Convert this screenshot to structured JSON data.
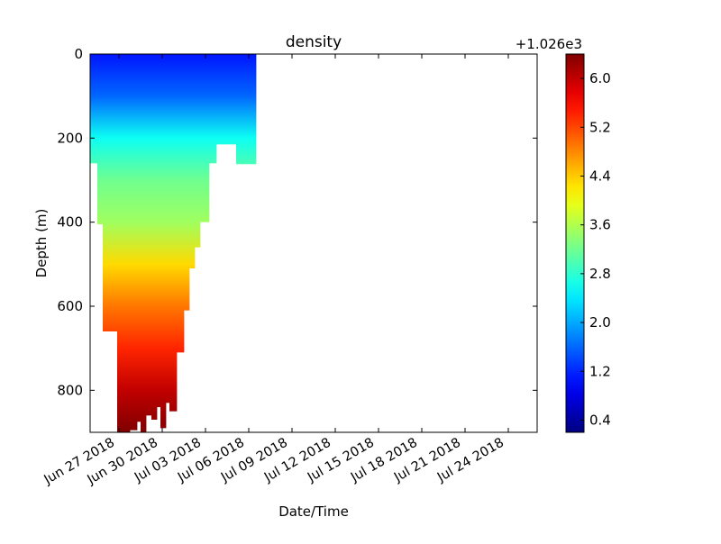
{
  "chart_data": {
    "type": "heatmap",
    "title": "density",
    "xlabel": "Date/Time",
    "ylabel": "Depth (m)",
    "y_inverted": true,
    "ylim": [
      0,
      900
    ],
    "y_ticks": [
      0,
      200,
      400,
      600,
      800
    ],
    "x_range": [
      "2018-06-25",
      "2018-07-26"
    ],
    "x_ticks": [
      "Jun 27 2018",
      "Jun 30 2018",
      "Jul 03 2018",
      "Jul 06 2018",
      "Jul 09 2018",
      "Jul 12 2018",
      "Jul 15 2018",
      "Jul 18 2018",
      "Jul 21 2018",
      "Jul 24 2018"
    ],
    "x_tick_dates": [
      "2018-06-27",
      "2018-06-30",
      "2018-07-03",
      "2018-07-06",
      "2018-07-09",
      "2018-07-12",
      "2018-07-15",
      "2018-07-18",
      "2018-07-21",
      "2018-07-24"
    ],
    "colormap": "jet",
    "colorbar": {
      "offset_label": "+1.026e3",
      "range": [
        0.2,
        6.4
      ],
      "ticks": [
        "0.4",
        "1.2",
        "2.0",
        "2.8",
        "3.6",
        "4.4",
        "5.2",
        "6.0"
      ],
      "tick_values": [
        0.4,
        1.2,
        2.0,
        2.8,
        3.6,
        4.4,
        5.2,
        6.0
      ]
    },
    "density_anomaly_by_depth": {
      "depth": [
        0,
        100,
        200,
        300,
        400,
        500,
        600,
        700,
        800,
        900
      ],
      "value": [
        1.1,
        1.6,
        2.6,
        3.2,
        3.5,
        4.3,
        4.9,
        5.4,
        6.0,
        6.4
      ]
    },
    "profiles_max_depth": [
      {
        "start": "2018-06-25",
        "end": "2018-06-25T12:00",
        "max_depth": 260
      },
      {
        "start": "2018-06-25T12:00",
        "end": "2018-06-25T21:00",
        "max_depth": 405
      },
      {
        "start": "2018-06-25T21:00",
        "end": "2018-06-26T21:00",
        "max_depth": 660
      },
      {
        "start": "2018-06-26T21:00",
        "end": "2018-06-27T18:00",
        "max_depth": 900
      },
      {
        "start": "2018-06-27T18:00",
        "end": "2018-06-28T06:00",
        "max_depth": 895
      },
      {
        "start": "2018-06-28T06:00",
        "end": "2018-06-28T12:00",
        "max_depth": 875
      },
      {
        "start": "2018-06-28T12:00",
        "end": "2018-06-28T21:00",
        "max_depth": 900
      },
      {
        "start": "2018-06-28T21:00",
        "end": "2018-06-29T06:00",
        "max_depth": 860
      },
      {
        "start": "2018-06-29T06:00",
        "end": "2018-06-29T15:00",
        "max_depth": 870
      },
      {
        "start": "2018-06-29T15:00",
        "end": "2018-06-29T21:00",
        "max_depth": 840
      },
      {
        "start": "2018-06-29T21:00",
        "end": "2018-06-30T06:00",
        "max_depth": 890
      },
      {
        "start": "2018-06-30T06:00",
        "end": "2018-06-30T12:00",
        "max_depth": 830
      },
      {
        "start": "2018-06-30T12:00",
        "end": "2018-07-01T00:00",
        "max_depth": 850
      },
      {
        "start": "2018-07-01T00:00",
        "end": "2018-07-01T12:00",
        "max_depth": 710
      },
      {
        "start": "2018-07-01T12:00",
        "end": "2018-07-01T21:00",
        "max_depth": 610
      },
      {
        "start": "2018-07-01T21:00",
        "end": "2018-07-02T06:00",
        "max_depth": 510
      },
      {
        "start": "2018-07-02T06:00",
        "end": "2018-07-02T15:00",
        "max_depth": 460
      },
      {
        "start": "2018-07-02T15:00",
        "end": "2018-07-03T06:00",
        "max_depth": 400
      },
      {
        "start": "2018-07-03T06:00",
        "end": "2018-07-03T18:00",
        "max_depth": 260
      },
      {
        "start": "2018-07-03T18:00",
        "end": "2018-07-05T03:00",
        "max_depth": 215
      },
      {
        "start": "2018-07-05T03:00",
        "end": "2018-07-06T12:00",
        "max_depth": 262
      }
    ]
  }
}
